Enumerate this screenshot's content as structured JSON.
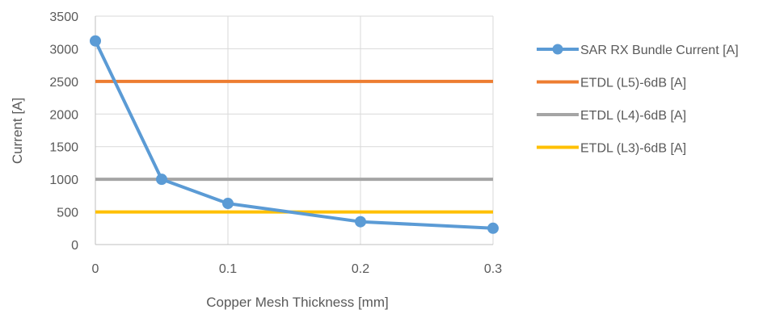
{
  "chart_data": {
    "type": "line",
    "title": "",
    "xlabel": "Copper Mesh Thickness [mm]",
    "ylabel": "Current [A]",
    "x": [
      0,
      0.05,
      0.1,
      0.2,
      0.3
    ],
    "x_ticks": [
      0,
      0.1,
      0.2,
      0.3
    ],
    "x_tick_labels": [
      "0",
      "0.1",
      "0.2",
      "0.3"
    ],
    "xlim": [
      0,
      0.3
    ],
    "ylim": [
      0,
      3500
    ],
    "y_ticks": [
      0,
      500,
      1000,
      1500,
      2000,
      2500,
      3000,
      3500
    ],
    "y_tick_labels": [
      "0",
      "500",
      "1000",
      "1500",
      "2000",
      "2500",
      "3000",
      "3500"
    ],
    "grid": true,
    "legend_position": "right",
    "series": [
      {
        "name": "SAR RX Bundle Current [A]",
        "values": [
          3120,
          1000,
          630,
          350,
          250
        ],
        "color": "#5B9BD5",
        "markers": true
      },
      {
        "name": "ETDL (L5)-6dB [A]",
        "values": [
          2500,
          2500,
          2500,
          2500,
          2500
        ],
        "color": "#ED7D31",
        "markers": false
      },
      {
        "name": "ETDL (L4)-6dB [A]",
        "values": [
          1000,
          1000,
          1000,
          1000,
          1000
        ],
        "color": "#A5A5A5",
        "markers": false
      },
      {
        "name": "ETDL (L3)-6dB [A]",
        "values": [
          500,
          500,
          500,
          500,
          500
        ],
        "color": "#FFC000",
        "markers": false
      }
    ]
  }
}
